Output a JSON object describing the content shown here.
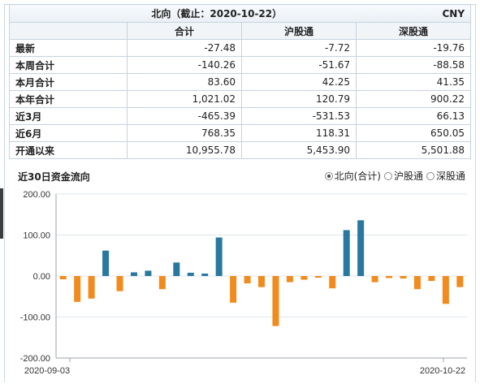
{
  "table": {
    "title": "北向（截止：2020-10-22）",
    "currency": "CNY",
    "columns": [
      "",
      "合计",
      "沪股通",
      "深股通"
    ],
    "rows": [
      {
        "label": "最新",
        "values": [
          "-27.48",
          "-7.72",
          "-19.76"
        ]
      },
      {
        "label": "本周合计",
        "values": [
          "-140.26",
          "-51.67",
          "-88.58"
        ]
      },
      {
        "label": "本月合计",
        "values": [
          "83.60",
          "42.25",
          "41.35"
        ]
      },
      {
        "label": "本年合计",
        "values": [
          "1,021.02",
          "120.79",
          "900.22"
        ]
      },
      {
        "label": "近3月",
        "values": [
          "-465.39",
          "-531.53",
          "66.13"
        ]
      },
      {
        "label": "近6月",
        "values": [
          "768.35",
          "118.31",
          "650.05"
        ]
      },
      {
        "label": "开通以来",
        "values": [
          "10,955.78",
          "5,453.90",
          "5,501.88"
        ]
      }
    ]
  },
  "chart_section": {
    "title": "近30日资金流向",
    "options": [
      {
        "label": "北向(合计)",
        "selected": true
      },
      {
        "label": "沪股通",
        "selected": false
      },
      {
        "label": "深股通",
        "selected": false
      }
    ]
  },
  "chart_data": {
    "type": "bar",
    "title": "近30日资金流向",
    "ylim": [
      -200,
      200
    ],
    "yticks": [
      "200.00",
      "100.00",
      "0.00",
      "-100.00",
      "-200.00"
    ],
    "x_start_label": "2020-09-03",
    "x_end_label": "2020-10-22",
    "positive_color": "#2a78a0",
    "negative_color": "#f28b1e",
    "grid": "horizontal",
    "values": [
      -8,
      -63,
      -55,
      62,
      -37,
      9,
      13,
      -32,
      33,
      8,
      6,
      94,
      -65,
      -18,
      -27,
      -122,
      -15,
      -9,
      -4,
      -30,
      112,
      136,
      -15,
      -5,
      -6,
      -32,
      -12,
      -68,
      -27
    ]
  }
}
